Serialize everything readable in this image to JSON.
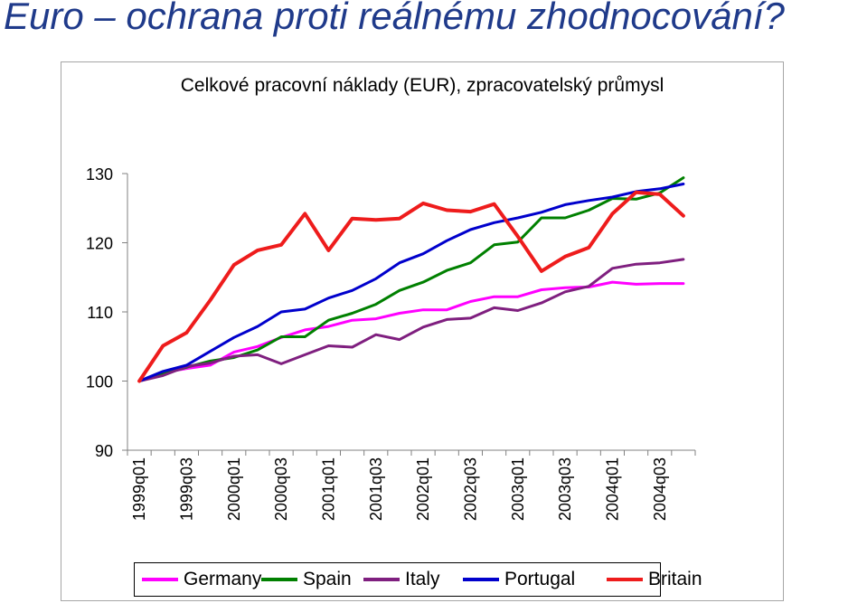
{
  "slide": {
    "title": "Euro – ochrana proti reálnému zhodnocování?"
  },
  "chart_data": {
    "type": "line",
    "title": "Celkové pracovní náklady (EUR), zpracovatelský průmysl",
    "xlabel": "",
    "ylabel": "",
    "ylim": [
      90,
      130
    ],
    "yticks": [
      90,
      100,
      110,
      120,
      130
    ],
    "grid": false,
    "legend_position": "bottom",
    "x": [
      "1999q01",
      "1999q02",
      "1999q03",
      "1999q04",
      "2000q01",
      "2000q02",
      "2000q03",
      "2000q04",
      "2001q01",
      "2001q02",
      "2001q03",
      "2001q04",
      "2002q01",
      "2002q02",
      "2002q03",
      "2002q04",
      "2003q01",
      "2003q02",
      "2003q03",
      "2003q04",
      "2004q01",
      "2004q02",
      "2004q03",
      "2004q04"
    ],
    "x_tick_labels": [
      "1999q01",
      "",
      "1999q03",
      "",
      "2000q01",
      "",
      "2000q03",
      "",
      "2001q01",
      "",
      "2001q03",
      "",
      "2002q01",
      "",
      "2002q03",
      "",
      "2003q01",
      "",
      "2003q03",
      "",
      "2004q01",
      "",
      "2004q03",
      ""
    ],
    "series": [
      {
        "name": "Germany",
        "color": "#ff00ff",
        "values": [
          100,
          101.2,
          101.8,
          102.3,
          104.2,
          105.0,
          106.3,
          107.4,
          107.9,
          108.8,
          109.0,
          109.8,
          110.3,
          110.3,
          111.5,
          112.2,
          112.2,
          113.2,
          113.5,
          113.6,
          114.3,
          114.0,
          114.1,
          114.1
        ]
      },
      {
        "name": "Spain",
        "color": "#008000",
        "values": [
          100,
          101.0,
          102.0,
          102.9,
          103.4,
          104.5,
          106.4,
          106.4,
          108.8,
          109.8,
          111.1,
          113.1,
          114.3,
          116.0,
          117.1,
          119.7,
          120.1,
          123.6,
          123.6,
          124.7,
          126.4,
          126.3,
          127.2,
          129.4
        ]
      },
      {
        "name": "Italy",
        "color": "#7f1f7f",
        "values": [
          100,
          100.8,
          102.1,
          102.6,
          103.6,
          103.8,
          102.5,
          103.8,
          105.1,
          104.9,
          106.7,
          106.0,
          107.8,
          108.9,
          109.1,
          110.6,
          110.2,
          111.3,
          112.9,
          113.7,
          116.3,
          116.9,
          117.1,
          117.6
        ]
      },
      {
        "name": "Portugal",
        "color": "#0000cc",
        "values": [
          100,
          101.4,
          102.3,
          104.3,
          106.3,
          107.9,
          110.0,
          110.4,
          112.0,
          113.1,
          114.8,
          117.1,
          118.4,
          120.3,
          121.9,
          122.9,
          123.6,
          124.4,
          125.5,
          126.1,
          126.6,
          127.4,
          127.8,
          128.5
        ]
      },
      {
        "name": "Britain",
        "color": "#ee1c1c",
        "values": [
          100,
          105.1,
          107.0,
          111.7,
          116.8,
          118.9,
          119.7,
          124.2,
          118.9,
          123.5,
          123.3,
          123.5,
          125.7,
          124.7,
          124.5,
          125.6,
          120.9,
          115.9,
          118.0,
          119.3,
          124.2,
          127.3,
          127.0,
          123.9
        ]
      }
    ]
  }
}
